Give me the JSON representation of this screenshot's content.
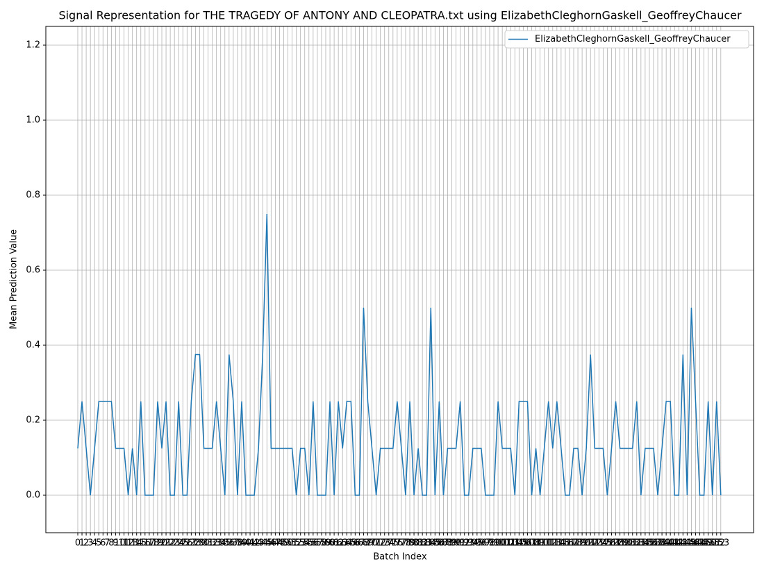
{
  "chart_data": {
    "type": "line",
    "title": "Signal Representation for THE TRAGEDY OF ANTONY AND CLEOPATRA.txt using ElizabethCleghornGaskell_GeoffreyChaucer",
    "xlabel": "Batch Index",
    "ylabel": "Mean Prediction Value",
    "x": [
      0,
      1,
      2,
      3,
      4,
      5,
      6,
      7,
      8,
      9,
      10,
      11,
      12,
      13,
      14,
      15,
      16,
      17,
      18,
      19,
      20,
      21,
      22,
      23,
      24,
      25,
      26,
      27,
      28,
      29,
      30,
      31,
      32,
      33,
      34,
      35,
      36,
      37,
      38,
      39,
      40,
      41,
      42,
      43,
      44,
      45,
      46,
      47,
      48,
      49,
      50,
      51,
      52,
      53,
      54,
      55,
      56,
      57,
      58,
      59,
      60,
      61,
      62,
      63,
      64,
      65,
      66,
      67,
      68,
      69,
      70,
      71,
      72,
      73,
      74,
      75,
      76,
      77,
      78,
      79,
      80,
      81,
      82,
      83,
      84,
      85,
      86,
      87,
      88,
      89,
      90,
      91,
      92,
      93,
      94,
      95,
      96,
      97,
      98,
      99,
      100,
      101,
      102,
      103,
      104,
      105,
      106,
      107,
      108,
      109,
      110,
      111,
      112,
      113,
      114,
      115,
      116,
      117,
      118,
      119,
      120,
      121,
      122,
      123,
      124,
      125,
      126,
      127,
      128,
      129,
      130,
      131,
      132,
      133,
      134,
      135,
      136,
      137,
      138,
      139,
      140,
      141,
      142,
      143,
      144,
      145,
      146,
      147,
      148,
      149,
      150,
      151,
      152,
      153
    ],
    "series": [
      {
        "name": "ElizabethCleghornGaskell_GeoffreyChaucer",
        "color": "#1f77b4",
        "values": [
          0.125,
          0.25,
          0.125,
          0,
          0.125,
          0.25,
          0.25,
          0.25,
          0.25,
          0.125,
          0.125,
          0.125,
          0,
          0.125,
          0,
          0.25,
          0,
          0,
          0,
          0.25,
          0.125,
          0.25,
          0,
          0,
          0.25,
          0,
          0,
          0.25,
          0.375,
          0.375,
          0.125,
          0.125,
          0.125,
          0.25,
          0.125,
          0,
          0.375,
          0.25,
          0,
          0.25,
          0,
          0,
          0,
          0.125,
          0.375,
          0.75,
          0.125,
          0.125,
          0.125,
          0.125,
          0.125,
          0.125,
          0,
          0.125,
          0.125,
          0,
          0.25,
          0,
          0,
          0,
          0.25,
          0,
          0.25,
          0.125,
          0.25,
          0.25,
          0,
          0,
          0.5,
          0.25,
          0.125,
          0,
          0.125,
          0.125,
          0.125,
          0.125,
          0.25,
          0.125,
          0,
          0.25,
          0,
          0.125,
          0,
          0,
          0.5,
          0,
          0.25,
          0,
          0.125,
          0.125,
          0.125,
          0.25,
          0,
          0,
          0.125,
          0.125,
          0.125,
          0,
          0,
          0,
          0.25,
          0.125,
          0.125,
          0.125,
          0,
          0.25,
          0.25,
          0.25,
          0,
          0.125,
          0,
          0.125,
          0.25,
          0.125,
          0.25,
          0.125,
          0,
          0,
          0.125,
          0.125,
          0,
          0.125,
          0.375,
          0.125,
          0.125,
          0.125,
          0,
          0.125,
          0.25,
          0.125,
          0.125,
          0.125,
          0.125,
          0.25,
          0,
          0.125,
          0.125,
          0.125,
          0,
          0.125,
          0.25,
          0.25,
          0,
          0,
          0.375,
          0,
          0.5,
          0.25,
          0,
          0,
          0.25,
          0,
          0.25,
          0
        ]
      }
    ],
    "xlim": [
      -7.6,
      160.8
    ],
    "ylim": [
      -0.1,
      1.25
    ],
    "yticks": [
      {
        "value": 0,
        "label": "0.0"
      },
      0.2,
      0.4,
      0.6,
      0.8,
      {
        "value": 1,
        "label": "1.0"
      },
      1.2
    ],
    "grid": true,
    "legend": "upper right"
  }
}
